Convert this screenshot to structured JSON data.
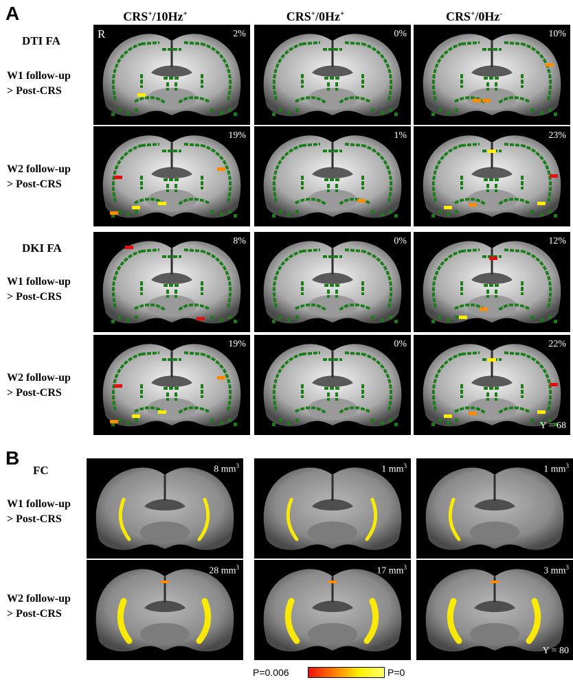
{
  "panel_labels": {
    "a": "A",
    "b": "B"
  },
  "column_headers": [
    {
      "base": "CRS",
      "sup1": "+",
      "mid": "/10Hz",
      "sup2": "+"
    },
    {
      "base": "CRS",
      "sup1": "+",
      "mid": "/0Hz",
      "sup2": "+"
    },
    {
      "base": "CRS",
      "sup1": "+",
      "mid": "/0Hz",
      "sup2": "-"
    }
  ],
  "panel_a": {
    "side_marker": "R",
    "coordinate_label": "Y = 68",
    "rows": [
      {
        "section": "DTI FA",
        "line1": "W1 follow-up",
        "line2": "> Post-CRS",
        "values": [
          "2%",
          "0%",
          "10%"
        ]
      },
      {
        "section": "",
        "line1": "W2 follow-up",
        "line2": "> Post-CRS",
        "values": [
          "19%",
          "1%",
          "23%"
        ]
      },
      {
        "section": "DKI FA",
        "line1": "W1 follow-up",
        "line2": "> Post-CRS",
        "values": [
          "8%",
          "0%",
          "12%"
        ]
      },
      {
        "section": "",
        "line1": "W2 follow-up",
        "line2": "> Post-CRS",
        "values": [
          "19%",
          "0%",
          "22%"
        ]
      }
    ]
  },
  "panel_b": {
    "section": "FC",
    "coordinate_label": "Y = 80",
    "unit": "mm",
    "unit_sup": "3",
    "rows": [
      {
        "line1": "W1 follow-up",
        "line2": "> Post-CRS",
        "values": [
          "8",
          "1",
          "1"
        ]
      },
      {
        "line1": "W2 follow-up",
        "line2": "> Post-CRS",
        "values": [
          "28",
          "17",
          "3"
        ]
      }
    ]
  },
  "colorbar": {
    "min_label": "P=0.006",
    "max_label": "P=0",
    "colors": [
      "#ee1010",
      "#ff7a00",
      "#ffee00",
      "#ffff66"
    ]
  },
  "colors": {
    "tract": "#1a7d1a",
    "sig_low": "#e01010",
    "sig_mid": "#ff8c00",
    "sig_high": "#ffee00"
  }
}
